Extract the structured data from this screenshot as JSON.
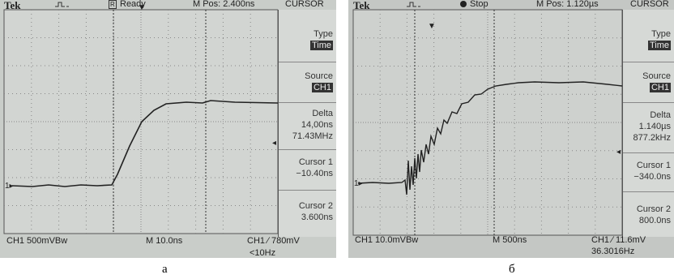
{
  "panels": [
    {
      "header": {
        "brand": "Tek",
        "status_icon": "R",
        "status": "Ready",
        "m_pos": "M Pos: 2.400ns",
        "menu_title": "CURSOR"
      },
      "menu": {
        "type_label": "Type",
        "type_value": "Time",
        "source_label": "Source",
        "source_value": "CH1",
        "delta_label": "Delta",
        "delta_lines": [
          "14,00ns",
          "71.43MHz"
        ],
        "cursor1_label": "Cursor 1",
        "cursor1_value": "−10.40ns",
        "cursor2_label": "Cursor 2",
        "cursor2_value": "3.600ns"
      },
      "footer": {
        "channel": "CH1  500mVBw",
        "timebase": "M 10.0ns",
        "trigger": "CH1 ∕ 780mV",
        "frequency": "<10Hz"
      },
      "caption": "а"
    },
    {
      "header": {
        "brand": "Tek",
        "status": "Stop",
        "m_pos": "M Pos: 1.120µs",
        "menu_title": "CURSOR"
      },
      "menu": {
        "type_label": "Type",
        "type_value": "Time",
        "source_label": "Source",
        "source_value": "CH1",
        "delta_label": "Delta",
        "delta_lines": [
          "1.140µs",
          "877.2kHz"
        ],
        "cursor1_label": "Cursor 1",
        "cursor1_value": "−340.0ns",
        "cursor2_label": "Cursor 2",
        "cursor2_value": "800.0ns"
      },
      "footer": {
        "channel": "CH1  10.0mVBw",
        "timebase": "M 500ns",
        "trigger": "CH1 ∕ 11.6mV",
        "frequency": "36.3016Hz"
      },
      "caption": "б"
    }
  ]
}
